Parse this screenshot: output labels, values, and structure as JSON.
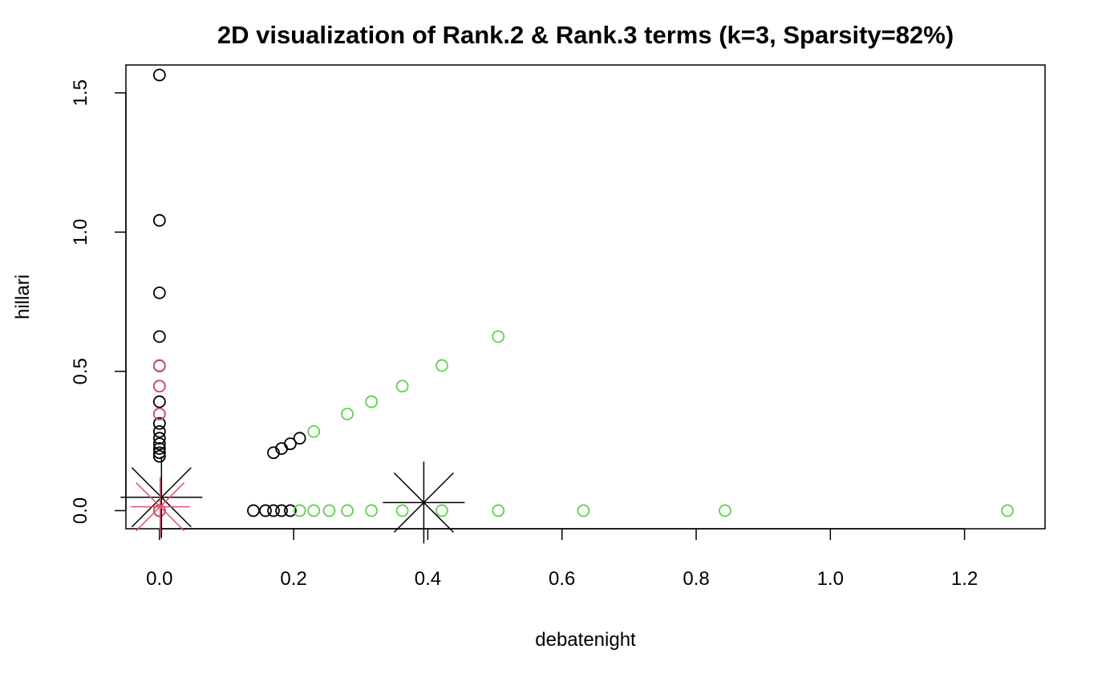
{
  "chart_data": {
    "type": "scatter",
    "title": "2D visualization of Rank.2 & Rank.3 terms (k=3, Sparsity=82%)",
    "xlabel": "debatenight",
    "ylabel": "hillari",
    "xlim": [
      -0.05,
      1.32
    ],
    "ylim": [
      -0.065,
      1.6
    ],
    "xticks": [
      0.0,
      0.2,
      0.4,
      0.6,
      0.8,
      1.0,
      1.2
    ],
    "xtick_labels": [
      "0.0",
      "0.2",
      "0.4",
      "0.6",
      "0.8",
      "1.0",
      "1.2"
    ],
    "yticks": [
      0.0,
      0.5,
      1.0,
      1.5
    ],
    "ytick_labels": [
      "0.0",
      "0.5",
      "1.0",
      "1.5"
    ],
    "grid": false,
    "legend": "none",
    "colors": {
      "black": "#000000",
      "red": "#DF536B",
      "green": "#61D04F"
    },
    "series": [
      {
        "color": "black",
        "marker": "circle",
        "x": [
          0,
          0,
          0,
          0,
          0,
          0,
          0,
          0,
          0,
          0,
          0,
          0,
          0,
          0,
          0,
          0,
          0,
          0.14,
          0.158,
          0.17,
          0.182,
          0.195,
          0.17,
          0.182,
          0.195,
          0.209
        ],
        "y": [
          1.564,
          1.042,
          0.782,
          0.625,
          0.391,
          0.347,
          0.313,
          0.284,
          0.26,
          0.24,
          0.223,
          0.208,
          0.195,
          0.52,
          0.447,
          0.0,
          0.0,
          0.0,
          0.0,
          0.0,
          0.0,
          0.0,
          0.208,
          0.223,
          0.24,
          0.26
        ]
      },
      {
        "color": "red",
        "marker": "circle",
        "x": [
          0,
          0,
          0,
          0
        ],
        "y": [
          0.521,
          0.447,
          0.347,
          0.0
        ]
      },
      {
        "color": "green",
        "marker": "circle",
        "x": [
          0.209,
          0.23,
          0.253,
          0.28,
          0.316,
          0.362,
          0.421,
          0.505,
          0.632,
          0.843,
          1.264,
          0.23,
          0.28,
          0.316,
          0.362,
          0.421,
          0.505
        ],
        "y": [
          0.0,
          0.0,
          0.0,
          0.0,
          0.0,
          0.0,
          0.0,
          0.0,
          0.0,
          0.0,
          0.0,
          0.284,
          0.347,
          0.391,
          0.447,
          0.521,
          0.625
        ]
      }
    ],
    "centers": [
      {
        "color": "black",
        "marker": "star",
        "x": 0.003,
        "y": 0.048
      },
      {
        "color": "red",
        "marker": "star",
        "x": 0.001,
        "y": 0.014
      },
      {
        "color": "black",
        "marker": "star",
        "x": 0.394,
        "y": 0.029
      }
    ]
  }
}
